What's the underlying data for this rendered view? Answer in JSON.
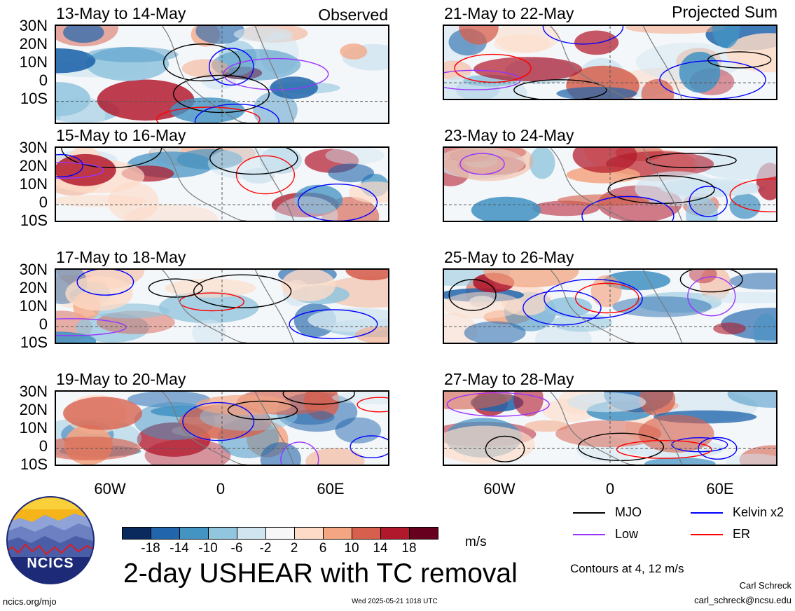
{
  "columns": {
    "left_header": "Observed",
    "right_header": "Projected Sum"
  },
  "panels": [
    {
      "title": "13-May to 14-May"
    },
    {
      "title": "15-May to 16-May"
    },
    {
      "title": "17-May to 18-May"
    },
    {
      "title": "19-May to 20-May"
    },
    {
      "title": "21-May to 22-May"
    },
    {
      "title": "23-May to 24-May"
    },
    {
      "title": "25-May to 26-May"
    },
    {
      "title": "27-May to 28-May"
    }
  ],
  "lat_labels": [
    "30N",
    "20N",
    "10N",
    "0",
    "10S"
  ],
  "lon_labels": [
    "60W",
    "0",
    "60E"
  ],
  "colorbar": {
    "labels": [
      "-18",
      "-14",
      "-10",
      "-6",
      "-2",
      "2",
      "6",
      "10",
      "14",
      "18"
    ],
    "colors": [
      "#0a2a5e",
      "#2166ac",
      "#4393c3",
      "#92c5de",
      "#d1e5f0",
      "#f7f7f7",
      "#fddbc7",
      "#f4a582",
      "#d6604d",
      "#b2182b",
      "#67001f"
    ],
    "unit": "m/s"
  },
  "legend": {
    "items": [
      {
        "label": "MJO",
        "color": "#000000"
      },
      {
        "label": "Kelvin x2",
        "color": "#0000ff"
      },
      {
        "label": "Low",
        "color": "#9933ff"
      },
      {
        "label": "ER",
        "color": "#ff0000"
      }
    ],
    "contours_note": "Contours at 4, 12 m/s"
  },
  "main_title": "2-day USHEAR with TC removal",
  "logo_text": "NCICS",
  "footer": {
    "left": "ncics.org/mjo",
    "center": "Wed 2025-05-21 1018 UTC",
    "author": "Carl Schreck",
    "email": "carl_schreck@ncsu.edu"
  }
}
